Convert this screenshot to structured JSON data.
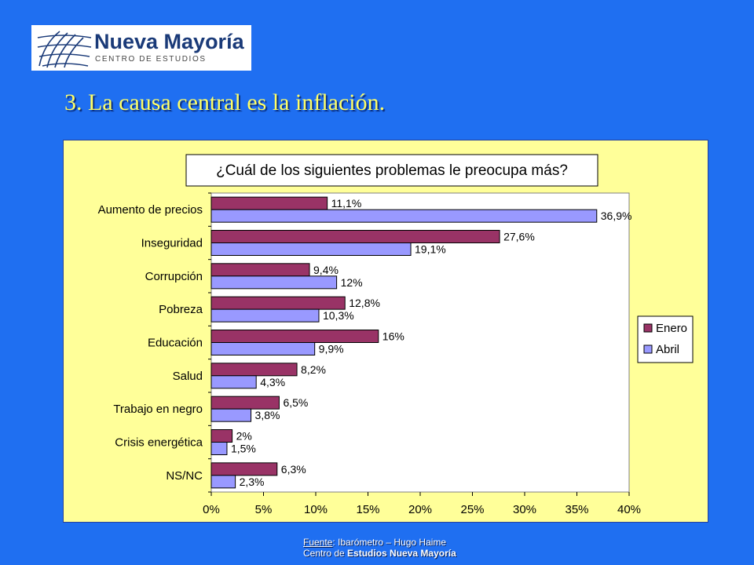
{
  "logo": {
    "name": "Nueva Mayoría",
    "subtitle": "CENTRO DE ESTUDIOS"
  },
  "slide": {
    "title": "3. La causa central es la inflación."
  },
  "footer": {
    "source_label": "Fuente",
    "source_rest": ": Ibarómetro – Hugo Haime",
    "org_prefix": "Centro de ",
    "org_bold": "Estudios Nueva Mayoría"
  },
  "colors": {
    "background": "#1f6ff1",
    "panel": "#ffff99",
    "series_enero": "#993366",
    "series_abril": "#9999ff",
    "title": "#ffff66"
  },
  "chart_data": {
    "type": "bar",
    "orientation": "horizontal",
    "title": "¿Cuál de los siguientes problemas le preocupa más?",
    "categories": [
      "Aumento de precios",
      "Inseguridad",
      "Corrupción",
      "Pobreza",
      "Educación",
      "Salud",
      "Trabajo en negro",
      "Crisis energética",
      "NS/NC"
    ],
    "series": [
      {
        "name": "Enero",
        "color": "#993366",
        "values": [
          11.1,
          27.6,
          9.4,
          12.8,
          16,
          8.2,
          6.5,
          2,
          6.3
        ],
        "labels": [
          "11,1%",
          "27,6%",
          "9,4%",
          "12,8%",
          "16%",
          "8,2%",
          "6,5%",
          "2%",
          "6,3%"
        ]
      },
      {
        "name": "Abril",
        "color": "#9999ff",
        "values": [
          36.9,
          19.1,
          12,
          10.3,
          9.9,
          4.3,
          3.8,
          1.5,
          2.3
        ],
        "labels": [
          "36,9%",
          "19,1%",
          "12%",
          "10,3%",
          "9,9%",
          "4,3%",
          "3,8%",
          "1,5%",
          "2,3%"
        ]
      }
    ],
    "xlim": [
      0,
      40
    ],
    "xticks": [
      "0%",
      "5%",
      "10%",
      "15%",
      "20%",
      "25%",
      "30%",
      "35%",
      "40%"
    ],
    "grid": false,
    "legend": "right"
  }
}
